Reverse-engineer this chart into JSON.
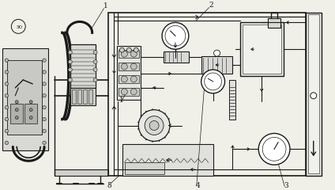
{
  "bg_color": "#f0efe8",
  "line_color": "#1a1a1a",
  "white": "#ffffff",
  "light_gray": "#e0e0dc",
  "mid_gray": "#c8c8c4",
  "dark_gray": "#a0a09c"
}
